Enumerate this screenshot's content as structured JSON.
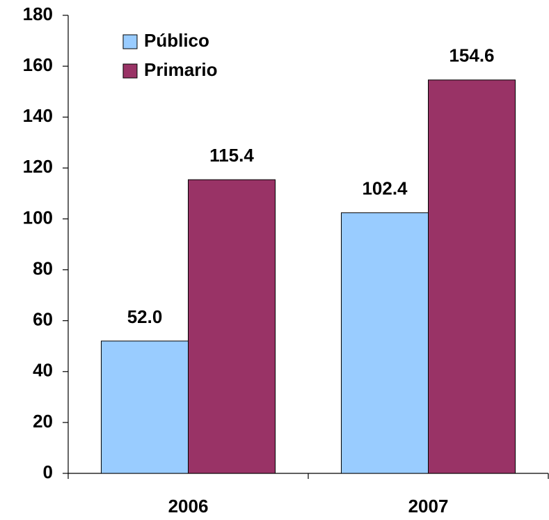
{
  "chart_data": {
    "type": "bar",
    "categories": [
      "2006",
      "2007"
    ],
    "series": [
      {
        "name": "Público",
        "color": "#99ccff",
        "values": [
          52.0,
          102.4
        ],
        "value_labels": [
          "52.0",
          "102.4"
        ]
      },
      {
        "name": "Primario",
        "color": "#993366",
        "values": [
          115.4,
          154.6
        ],
        "value_labels": [
          "115.4",
          "154.6"
        ]
      }
    ],
    "ylim": [
      0,
      180
    ],
    "yticks": [
      0,
      20,
      40,
      60,
      80,
      100,
      120,
      140,
      160,
      180
    ],
    "grid": false,
    "legend": "top-left"
  }
}
